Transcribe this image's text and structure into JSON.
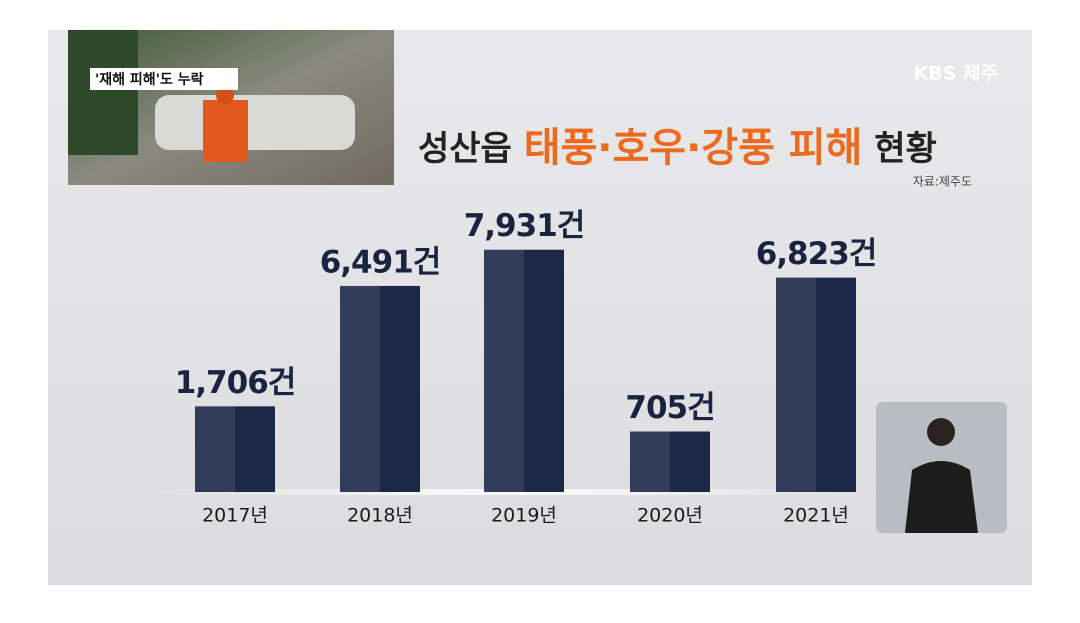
{
  "chart_data": {
    "type": "bar",
    "title": [
      "성산읍",
      "태풍·호우·강풍 피해",
      "현황"
    ],
    "source": "자료:제주도",
    "categories": [
      "2017년",
      "2018년",
      "2019년",
      "2020년",
      "2021년"
    ],
    "values": [
      1706,
      6491,
      7931,
      705,
      6823
    ],
    "value_labels": [
      "1,706건",
      "6,491건",
      "7,931건",
      "705건",
      "6,823건"
    ],
    "color": "#1c2847",
    "ylim": [
      -1700,
      8000
    ]
  },
  "overlay": {
    "logo": "KBS 제주",
    "caption": "'재해 피해'도 누락"
  }
}
